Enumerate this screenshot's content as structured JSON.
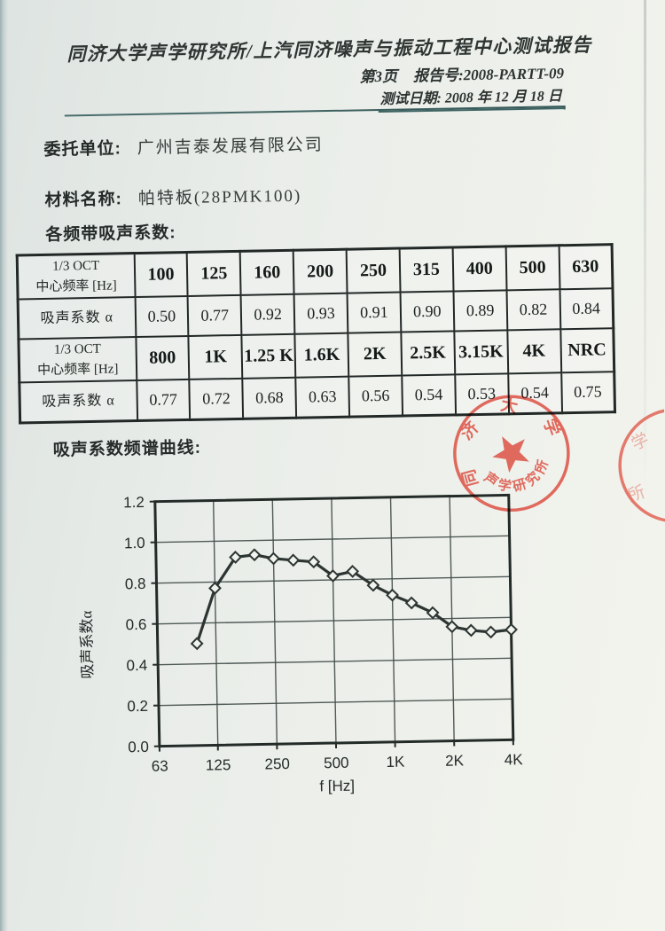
{
  "report": {
    "title": "同济大学声学研究所/上汽同济噪声与振动工程中心测试报告",
    "page_label": "第3页",
    "report_no": "报告号:2008-PARTT-09",
    "test_date": "测试日期: 2008 年 12 月 18 日"
  },
  "fields": {
    "client_label": "委托单位:",
    "client_value": "广州吉泰发展有限公司",
    "material_label": "材料名称:",
    "material_value": "帕特板(28PMK100)"
  },
  "sections": {
    "table_title": "各频带吸声系数:",
    "chart_title": "吸声系数频谱曲线:"
  },
  "table": {
    "freq_header_line1": "1/3 OCT",
    "freq_header_line2": "中心频率  [Hz]",
    "alpha_header": "吸声系数  α",
    "freq_row1": [
      "100",
      "125",
      "160",
      "200",
      "250",
      "315",
      "400",
      "500",
      "630"
    ],
    "alpha_row1": [
      "0.50",
      "0.77",
      "0.92",
      "0.93",
      "0.91",
      "0.90",
      "0.89",
      "0.82",
      "0.84"
    ],
    "freq_row2": [
      "800",
      "1K",
      "1.25 K",
      "1.6K",
      "2K",
      "2.5K",
      "3.15K",
      "4K",
      "NRC"
    ],
    "alpha_row2": [
      "0.77",
      "0.72",
      "0.68",
      "0.63",
      "0.56",
      "0.54",
      "0.53",
      "0.54",
      "0.75"
    ]
  },
  "chart_data": {
    "type": "line",
    "title": "吸声系数频谱曲线",
    "xlabel": "f  [Hz]",
    "ylabel": "吸声系数α",
    "x_scale": "log",
    "xlim": [
      63,
      4000
    ],
    "ylim": [
      0,
      1.2
    ],
    "grid": true,
    "legend": "none",
    "marker": "diamond",
    "x": [
      100,
      125,
      160,
      200,
      250,
      315,
      400,
      500,
      630,
      800,
      1000,
      1250,
      1600,
      2000,
      2500,
      3150,
      4000
    ],
    "y": [
      0.5,
      0.77,
      0.92,
      0.93,
      0.91,
      0.9,
      0.89,
      0.82,
      0.84,
      0.77,
      0.72,
      0.68,
      0.63,
      0.56,
      0.54,
      0.53,
      0.54
    ],
    "x_ticks": [
      {
        "value": 63,
        "label": "63"
      },
      {
        "value": 125,
        "label": "125"
      },
      {
        "value": 250,
        "label": "250"
      },
      {
        "value": 500,
        "label": "500"
      },
      {
        "value": 1000,
        "label": "1K"
      },
      {
        "value": 2000,
        "label": "2K"
      },
      {
        "value": 4000,
        "label": "4K"
      }
    ],
    "y_ticks": [
      {
        "value": 0,
        "label": "0.0"
      },
      {
        "value": 0.2,
        "label": "0.2"
      },
      {
        "value": 0.4,
        "label": "0.4"
      },
      {
        "value": 0.6,
        "label": "0.6"
      },
      {
        "value": 0.8,
        "label": "0.8"
      },
      {
        "value": 1.0,
        "label": "1.0"
      },
      {
        "value": 1.2,
        "label": "1.2"
      }
    ]
  },
  "stamp": {
    "arc_top_text": "同济大学",
    "arc_bottom_text": "声学研究所",
    "partial_char_top": "学",
    "partial_char_bottom": "所"
  },
  "colors": {
    "stamp_red": "#dc4a3d",
    "rule_teal": "#3e6463",
    "ink": "#262d2b",
    "table_border": "#212826"
  }
}
